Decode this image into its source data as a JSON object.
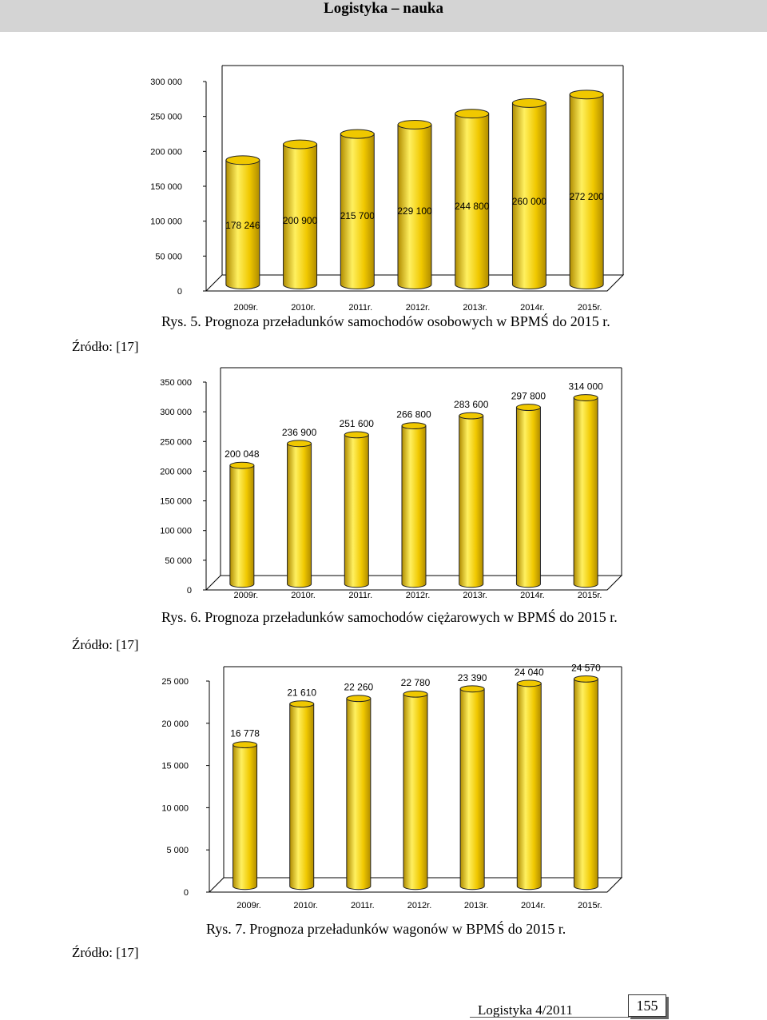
{
  "header": {
    "title": "Logistyka – nauka"
  },
  "figures": [
    {
      "caption": "Rys. 5. Prognoza przeładunków samochodów osobowych w BPMŚ do 2015 r.",
      "source": "Źródło: [17]"
    },
    {
      "caption": "Rys. 6. Prognoza przeładunków samochodów ciężarowych w BPMŚ do 2015 r.",
      "source": "Źródło: [17]"
    },
    {
      "caption": "Rys. 7. Prognoza przeładunków wagonów w BPMŚ do 2015 r.",
      "source": "Źródło: [17]"
    }
  ],
  "footer": {
    "journal": "Logistyka 4/2011",
    "page": "155"
  },
  "chart_data": [
    {
      "type": "bar",
      "title": "Rys. 5. Prognoza przeładunków samochodów osobowych w BPMŚ do 2015 r.",
      "categories": [
        "2009r.",
        "2010r.",
        "2011r.",
        "2012r.",
        "2013r.",
        "2014r.",
        "2015r."
      ],
      "values": [
        178246,
        200900,
        215700,
        229100,
        244800,
        260000,
        272200
      ],
      "value_labels": [
        "178 246",
        "200 900",
        "215 700",
        "229 100",
        "244 800",
        "260 000",
        "272 200"
      ],
      "yticks": [
        "0",
        "50 000",
        "100 000",
        "150 000",
        "200 000",
        "250 000",
        "300 000"
      ],
      "ylim": [
        0,
        300000
      ],
      "grid": false,
      "legend": "none",
      "bar_color": "#f0c800",
      "bar_dark": "#b08c00",
      "bar_light": "#fff060"
    },
    {
      "type": "bar",
      "title": "Rys. 6. Prognoza przeładunków samochodów ciężarowych w BPMŚ do 2015 r.",
      "categories": [
        "2009r.",
        "2010r.",
        "2011r.",
        "2012r.",
        "2013r.",
        "2014r.",
        "2015r."
      ],
      "values": [
        200048,
        236900,
        251600,
        266800,
        283600,
        297800,
        314000
      ],
      "value_labels": [
        "200 048",
        "236 900",
        "251 600",
        "266 800",
        "283 600",
        "297 800",
        "314 000"
      ],
      "yticks": [
        "0",
        "50 000",
        "100 000",
        "150 000",
        "200 000",
        "250 000",
        "300 000",
        "350 000"
      ],
      "ylim": [
        0,
        350000
      ],
      "grid": false,
      "legend": "none",
      "bar_color": "#f0c800",
      "bar_dark": "#b08c00",
      "bar_light": "#fff060"
    },
    {
      "type": "bar",
      "title": "Rys. 7. Prognoza przeładunków wagonów w BPMŚ do 2015 r.",
      "categories": [
        "2009r.",
        "2010r.",
        "2011r.",
        "2012r.",
        "2013r.",
        "2014r.",
        "2015r."
      ],
      "values": [
        16778,
        21610,
        22260,
        22780,
        23390,
        24040,
        24570
      ],
      "value_labels": [
        "16 778",
        "21 610",
        "22 260",
        "22 780",
        "23 390",
        "24 040",
        "24 570"
      ],
      "yticks": [
        "0",
        "5 000",
        "10 000",
        "15 000",
        "20 000",
        "25 000"
      ],
      "ylim": [
        0,
        25000
      ],
      "grid": false,
      "legend": "none",
      "bar_color": "#f0c800",
      "bar_dark": "#b08c00",
      "bar_light": "#fff060"
    }
  ]
}
